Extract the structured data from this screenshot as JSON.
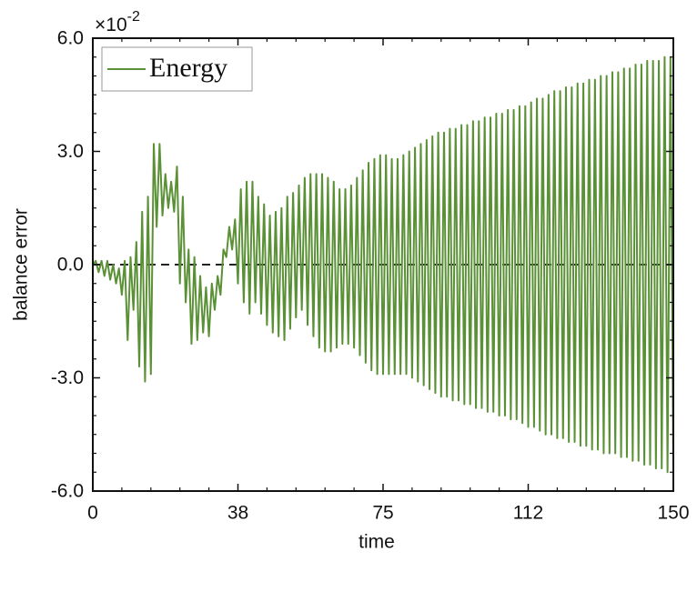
{
  "chart_data": {
    "type": "line",
    "x_label": "time",
    "y_label": "balance error",
    "y_offset_label": {
      "base": "×10",
      "exponent": "-2"
    },
    "xlim": [
      0,
      150
    ],
    "ylim": [
      -6,
      6
    ],
    "xticks": [
      0,
      {
        "value": 37.5,
        "label": "38"
      },
      75,
      {
        "value": 112.5,
        "label": "112"
      },
      150
    ],
    "yticks": [
      {
        "value": 6,
        "label": "6.0"
      },
      {
        "value": 3,
        "label": "3.0"
      },
      {
        "value": 0,
        "label": "0.0"
      },
      {
        "value": -3,
        "label": "-3.0"
      },
      {
        "value": -6,
        "label": "-6.0"
      }
    ],
    "xminorticks": [
      7.5,
      15,
      22.5,
      30,
      45,
      52.5,
      60,
      67.5,
      82.5,
      90,
      97.5,
      105,
      120,
      127.5,
      135,
      142.5
    ],
    "yminorticks": [
      -5.5,
      -5,
      -4.5,
      -4,
      -3.5,
      -2.5,
      -2,
      -1.5,
      -1,
      -0.5,
      0.5,
      1,
      1.5,
      2,
      2.5,
      3.5,
      4,
      4.5,
      5,
      5.5
    ],
    "reference_line": {
      "value": 0,
      "style": "dashed",
      "color": "#222222"
    },
    "legend_position": "upper left",
    "x": [
      0,
      0.75,
      1.5,
      2.25,
      3,
      3.75,
      4.5,
      5.25,
      6,
      6.75,
      7.5,
      8.25,
      9,
      9.75,
      10.5,
      11.25,
      12,
      12.75,
      13.5,
      14.25,
      15,
      15.75,
      16.5,
      17.25,
      18,
      18.75,
      19.5,
      20.25,
      21,
      21.75,
      22.5,
      23.25,
      24,
      24.75,
      25.5,
      26.25,
      27,
      27.75,
      28.5,
      29.25,
      30,
      30.75,
      31.5,
      32.25,
      33,
      33.75,
      34.5,
      35.25,
      36,
      36.75,
      37.5,
      38.25,
      39,
      39.75,
      40.5,
      41.25,
      42,
      42.75,
      43.5,
      44.25,
      45,
      45.75,
      46.5,
      47.25,
      48,
      48.75,
      49.5,
      50.25,
      51,
      51.75,
      52.5,
      53.25,
      54,
      54.75,
      55.5,
      56.25,
      57,
      57.75,
      58.5,
      59.25,
      60,
      60.75,
      61.5,
      62.25,
      63,
      63.75,
      64.5,
      65.25,
      66,
      66.75,
      67.5,
      68.25,
      69,
      69.75,
      70.5,
      71.25,
      72,
      72.75,
      73.5,
      74.25,
      75,
      75.75,
      76.5,
      77.25,
      78,
      78.75,
      79.5,
      80.25,
      81,
      81.75,
      82.5,
      83.25,
      84,
      84.75,
      85.5,
      86.25,
      87,
      87.75,
      88.5,
      89.25,
      90,
      90.75,
      91.5,
      92.25,
      93,
      93.75,
      94.5,
      95.25,
      96,
      96.75,
      97.5,
      98.25,
      99,
      99.75,
      100.5,
      101.25,
      102,
      102.75,
      103.5,
      104.25,
      105,
      105.75,
      106.5,
      107.25,
      108,
      108.75,
      109.5,
      110.25,
      111,
      111.75,
      112.5,
      113.25,
      114,
      114.75,
      115.5,
      116.25,
      117,
      117.75,
      118.5,
      119.25,
      120,
      120.75,
      121.5,
      122.25,
      123,
      123.75,
      124.5,
      125.25,
      126,
      126.75,
      127.5,
      128.25,
      129,
      129.75,
      130.5,
      131.25,
      132,
      132.75,
      133.5,
      134.25,
      135,
      135.75,
      136.5,
      137.25,
      138,
      138.75,
      139.5,
      140.25,
      141,
      141.75,
      142.5,
      143.25,
      144,
      144.75,
      145.5,
      146.25,
      147,
      147.75,
      148.5,
      149.25,
      150
    ],
    "series": [
      {
        "name": "Energy",
        "color": "#5b9136",
        "values": [
          0,
          0.1,
          -0.2,
          0.1,
          -0.3,
          0.1,
          -0.4,
          0.0,
          -0.5,
          -0.1,
          -0.8,
          0.1,
          -2.0,
          0.2,
          -1.2,
          0.6,
          -2.7,
          1.4,
          -3.1,
          1.8,
          -2.9,
          3.2,
          1.0,
          3.2,
          1.3,
          2.4,
          1.5,
          2.2,
          1.4,
          2.6,
          -0.5,
          1.8,
          -1.0,
          0.4,
          -2.1,
          0.2,
          -2.0,
          -0.3,
          -1.8,
          -0.6,
          -1.9,
          -0.5,
          -1.2,
          -0.3,
          -0.8,
          0.4,
          0.2,
          1.0,
          0.4,
          1.2,
          -0.5,
          2.0,
          -1.0,
          2.2,
          -1.3,
          2.2,
          -1.0,
          1.8,
          -1.3,
          1.6,
          -1.6,
          1.3,
          -1.8,
          1.4,
          -1.9,
          1.5,
          -2.0,
          1.8,
          -1.7,
          1.9,
          -1.4,
          2.1,
          -1.2,
          2.3,
          -1.6,
          2.4,
          -1.9,
          2.4,
          -2.2,
          2.4,
          -2.3,
          2.3,
          -2.3,
          2.2,
          -2.2,
          2.0,
          -2.1,
          2.0,
          -2.1,
          2.1,
          -2.2,
          2.3,
          -2.4,
          2.5,
          -2.6,
          2.7,
          -2.8,
          2.8,
          -2.9,
          2.9,
          -2.9,
          2.9,
          -2.9,
          2.8,
          -2.9,
          2.8,
          -2.9,
          2.9,
          -2.9,
          3.0,
          -3.0,
          3.1,
          -3.1,
          3.2,
          -3.2,
          3.3,
          -3.3,
          3.4,
          -3.4,
          3.5,
          -3.5,
          3.5,
          -3.5,
          3.6,
          -3.6,
          3.6,
          -3.6,
          3.7,
          -3.7,
          3.7,
          -3.7,
          3.8,
          -3.8,
          3.8,
          -3.8,
          3.9,
          -3.9,
          3.9,
          -3.9,
          4.0,
          -4.0,
          4.0,
          -4.0,
          4.1,
          -4.1,
          4.1,
          -4.1,
          4.2,
          -4.2,
          4.2,
          -4.3,
          4.3,
          -4.3,
          4.4,
          -4.4,
          4.4,
          -4.5,
          4.5,
          -4.5,
          4.6,
          -4.6,
          4.6,
          -4.6,
          4.7,
          -4.7,
          4.7,
          -4.7,
          4.8,
          -4.8,
          4.8,
          -4.8,
          4.9,
          -4.9,
          4.9,
          -4.9,
          5.0,
          -5.0,
          5.0,
          -5.0,
          5.1,
          -5.0,
          5.1,
          -5.1,
          5.2,
          -5.1,
          5.2,
          -5.2,
          5.3,
          -5.2,
          5.3,
          -5.3,
          5.4,
          -5.3,
          5.4,
          -5.4,
          5.4,
          -5.4,
          5.5,
          -5.5,
          5.5,
          -5.5
        ]
      }
    ]
  }
}
